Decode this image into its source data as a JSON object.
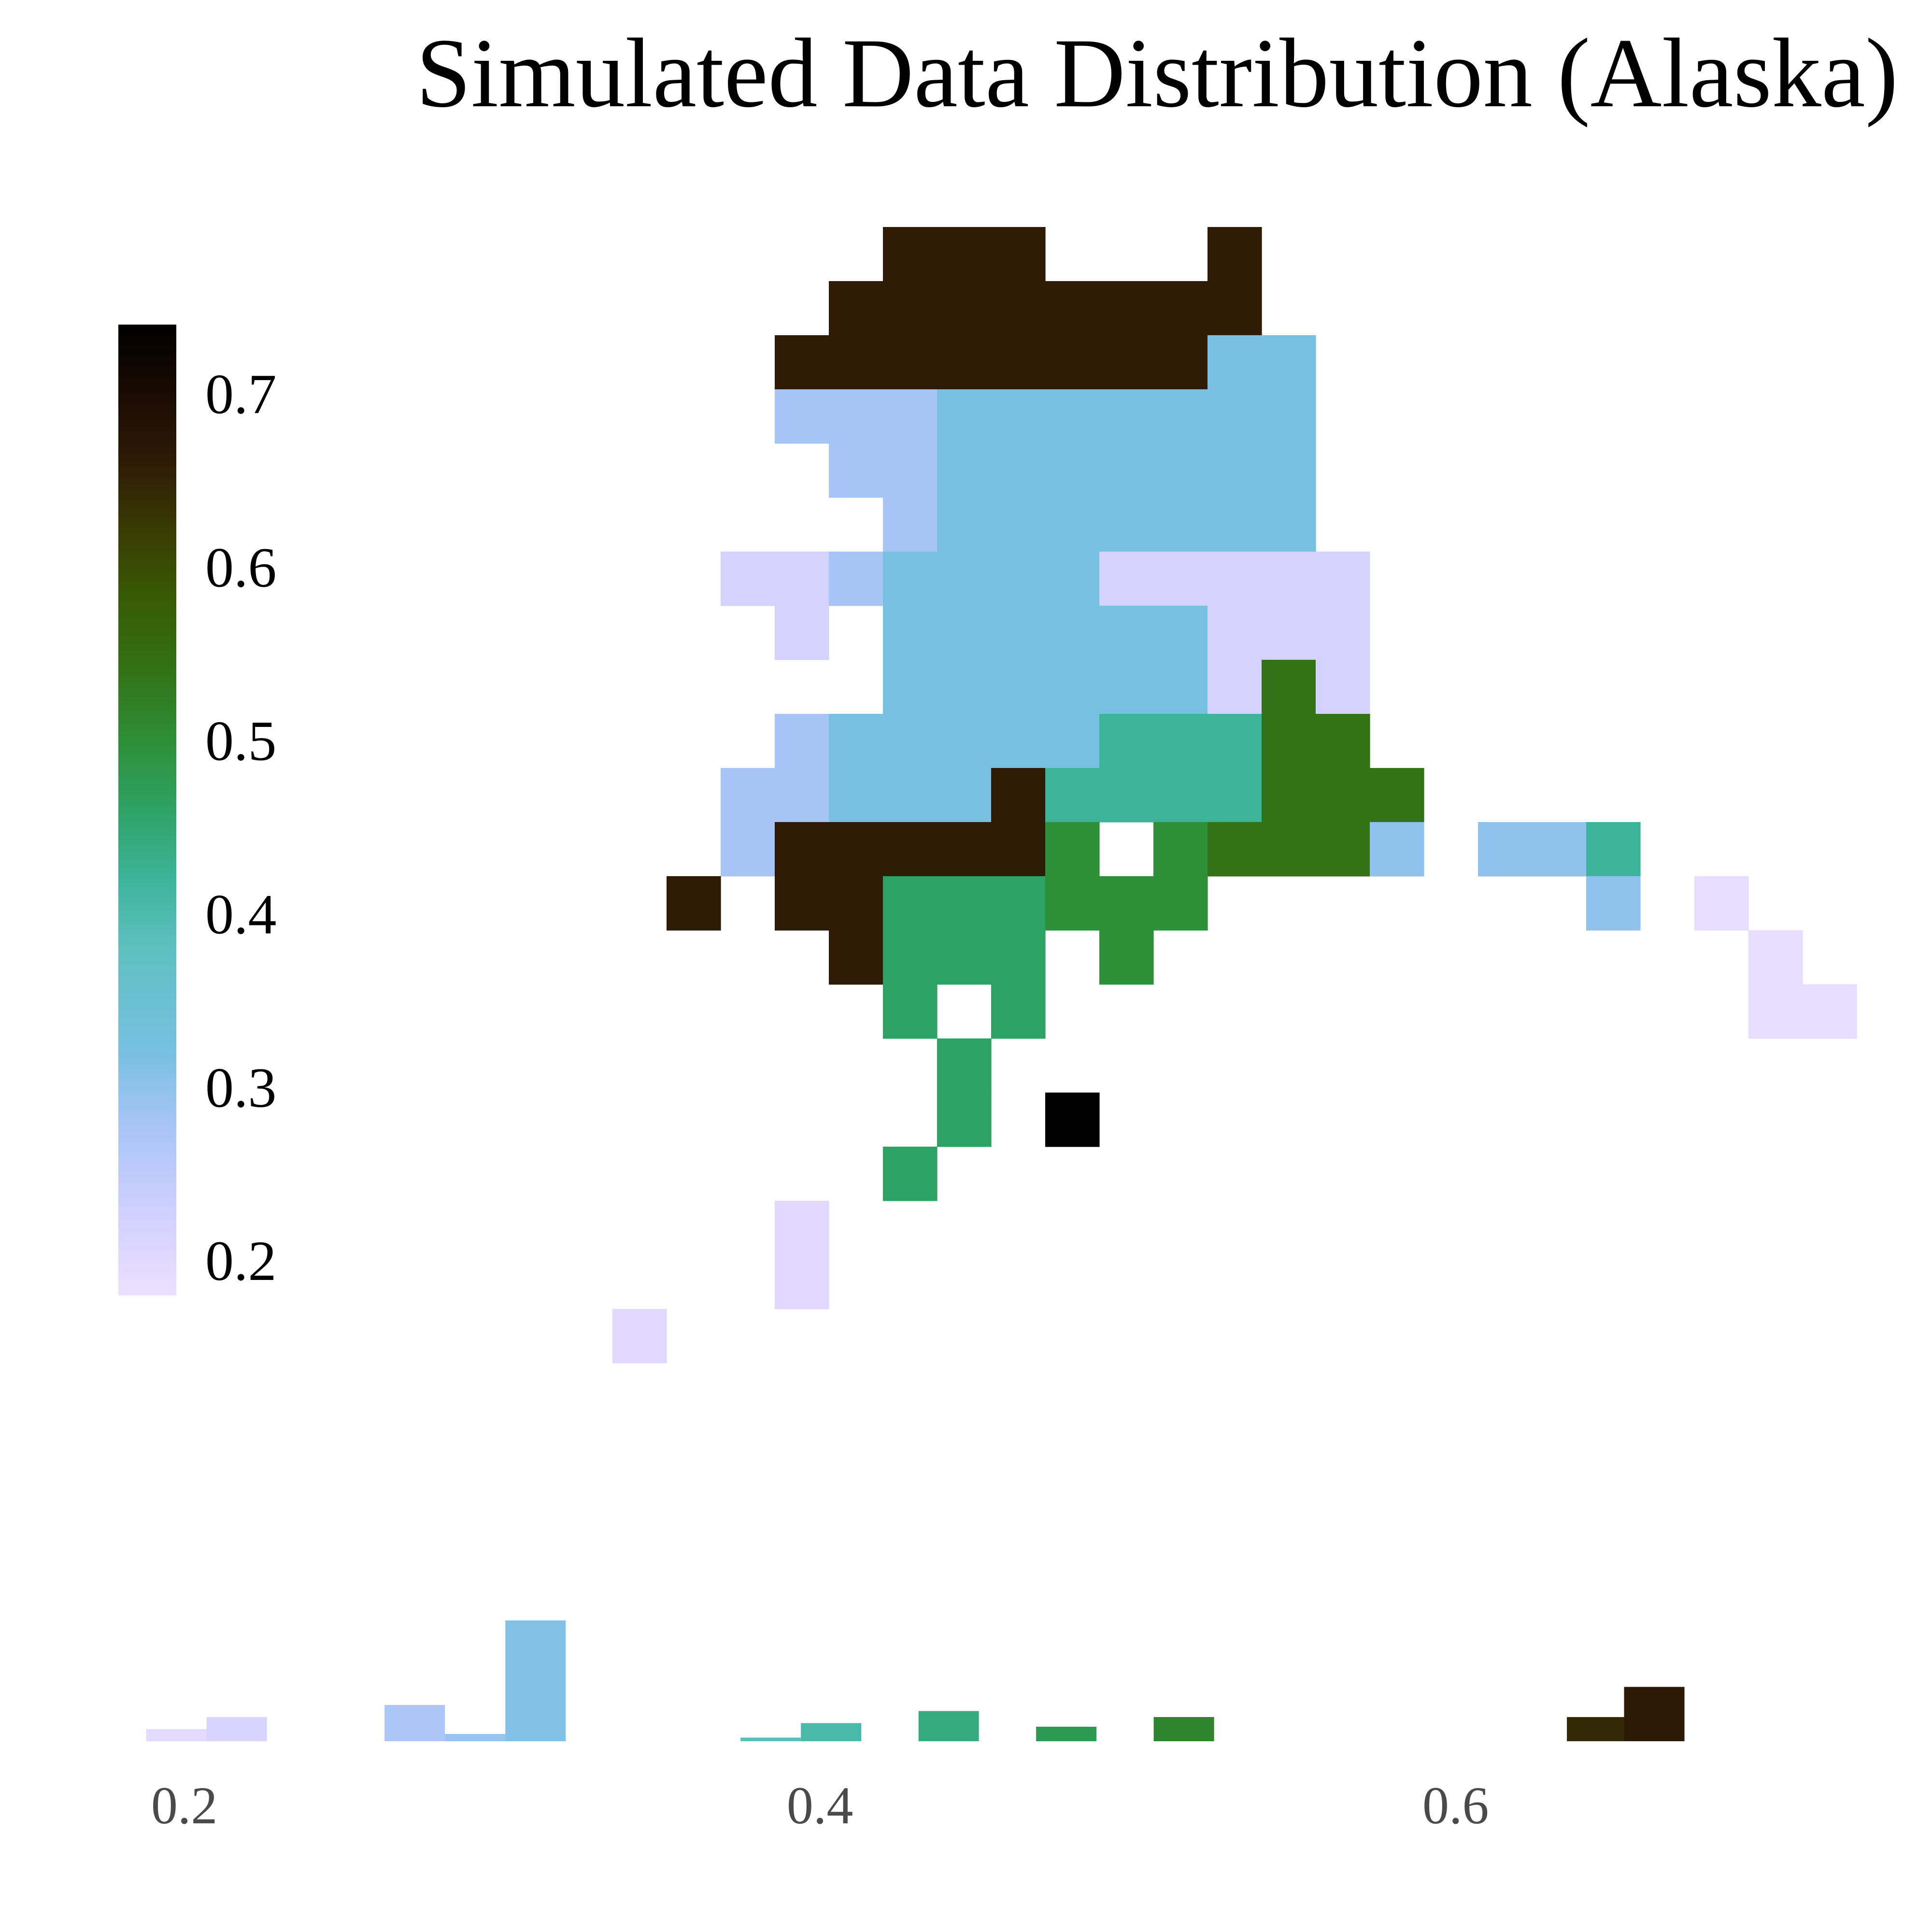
{
  "title": "Simulated Data Distribution (Alaska)",
  "chart_data": {
    "type": "heatmap",
    "title": "Simulated Data Distribution (Alaska)",
    "colormap": {
      "name": "cubehelix-reversed",
      "range": [
        0.18,
        0.74
      ],
      "stops": [
        {
          "v": 0.18,
          "color": "#ebe0ff"
        },
        {
          "v": 0.22,
          "color": "#d6d2ff"
        },
        {
          "v": 0.28,
          "color": "#a6c4f6"
        },
        {
          "v": 0.32,
          "color": "#78c0e2"
        },
        {
          "v": 0.38,
          "color": "#5ec0c0"
        },
        {
          "v": 0.42,
          "color": "#3db49a"
        },
        {
          "v": 0.46,
          "color": "#2ea265"
        },
        {
          "v": 0.5,
          "color": "#2d8f37"
        },
        {
          "v": 0.54,
          "color": "#337216"
        },
        {
          "v": 0.58,
          "color": "#375c05"
        },
        {
          "v": 0.62,
          "color": "#3a3d03"
        },
        {
          "v": 0.66,
          "color": "#2e1b06"
        },
        {
          "v": 0.7,
          "color": "#1a0b03"
        },
        {
          "v": 0.74,
          "color": "#000000"
        }
      ],
      "ticks": [
        0.7,
        0.6,
        0.5,
        0.4,
        0.3,
        0.2
      ],
      "tick_labels": [
        "0.7",
        "0.6",
        "0.5",
        "0.4",
        "0.3",
        "0.2"
      ]
    },
    "grid": {
      "cols": 22,
      "rows": 21,
      "cells": [
        {
          "c": 4,
          "r": 0,
          "v": 0.66
        },
        {
          "c": 5,
          "r": 0,
          "v": 0.66
        },
        {
          "c": 6,
          "r": 0,
          "v": 0.66
        },
        {
          "c": 10,
          "r": 0,
          "v": 0.66
        },
        {
          "c": 3,
          "r": 1,
          "v": 0.66
        },
        {
          "c": 4,
          "r": 1,
          "v": 0.66
        },
        {
          "c": 5,
          "r": 1,
          "v": 0.66
        },
        {
          "c": 6,
          "r": 1,
          "v": 0.66
        },
        {
          "c": 7,
          "r": 1,
          "v": 0.66
        },
        {
          "c": 8,
          "r": 1,
          "v": 0.66
        },
        {
          "c": 9,
          "r": 1,
          "v": 0.66
        },
        {
          "c": 10,
          "r": 1,
          "v": 0.66
        },
        {
          "c": 2,
          "r": 2,
          "v": 0.66
        },
        {
          "c": 3,
          "r": 2,
          "v": 0.66
        },
        {
          "c": 4,
          "r": 2,
          "v": 0.66
        },
        {
          "c": 5,
          "r": 2,
          "v": 0.66
        },
        {
          "c": 6,
          "r": 2,
          "v": 0.66
        },
        {
          "c": 7,
          "r": 2,
          "v": 0.66
        },
        {
          "c": 8,
          "r": 2,
          "v": 0.66
        },
        {
          "c": 9,
          "r": 2,
          "v": 0.66
        },
        {
          "c": 10,
          "r": 2,
          "v": 0.32
        },
        {
          "c": 11,
          "r": 2,
          "v": 0.32
        },
        {
          "c": 2,
          "r": 3,
          "v": 0.28
        },
        {
          "c": 3,
          "r": 3,
          "v": 0.28
        },
        {
          "c": 4,
          "r": 3,
          "v": 0.28
        },
        {
          "c": 5,
          "r": 3,
          "v": 0.32
        },
        {
          "c": 6,
          "r": 3,
          "v": 0.32
        },
        {
          "c": 7,
          "r": 3,
          "v": 0.32
        },
        {
          "c": 8,
          "r": 3,
          "v": 0.32
        },
        {
          "c": 9,
          "r": 3,
          "v": 0.32
        },
        {
          "c": 10,
          "r": 3,
          "v": 0.32
        },
        {
          "c": 11,
          "r": 3,
          "v": 0.32
        },
        {
          "c": 3,
          "r": 4,
          "v": 0.28
        },
        {
          "c": 4,
          "r": 4,
          "v": 0.28
        },
        {
          "c": 5,
          "r": 4,
          "v": 0.32
        },
        {
          "c": 6,
          "r": 4,
          "v": 0.32
        },
        {
          "c": 7,
          "r": 4,
          "v": 0.32
        },
        {
          "c": 8,
          "r": 4,
          "v": 0.32
        },
        {
          "c": 9,
          "r": 4,
          "v": 0.32
        },
        {
          "c": 10,
          "r": 4,
          "v": 0.32
        },
        {
          "c": 11,
          "r": 4,
          "v": 0.32
        },
        {
          "c": 4,
          "r": 5,
          "v": 0.28
        },
        {
          "c": 5,
          "r": 5,
          "v": 0.32
        },
        {
          "c": 6,
          "r": 5,
          "v": 0.32
        },
        {
          "c": 7,
          "r": 5,
          "v": 0.32
        },
        {
          "c": 8,
          "r": 5,
          "v": 0.32
        },
        {
          "c": 9,
          "r": 5,
          "v": 0.32
        },
        {
          "c": 10,
          "r": 5,
          "v": 0.32
        },
        {
          "c": 11,
          "r": 5,
          "v": 0.32
        },
        {
          "c": 1,
          "r": 6,
          "v": 0.22
        },
        {
          "c": 2,
          "r": 6,
          "v": 0.22
        },
        {
          "c": 3,
          "r": 6,
          "v": 0.28
        },
        {
          "c": 4,
          "r": 6,
          "v": 0.32
        },
        {
          "c": 5,
          "r": 6,
          "v": 0.32
        },
        {
          "c": 6,
          "r": 6,
          "v": 0.32
        },
        {
          "c": 7,
          "r": 6,
          "v": 0.32
        },
        {
          "c": 8,
          "r": 6,
          "v": 0.22
        },
        {
          "c": 9,
          "r": 6,
          "v": 0.22
        },
        {
          "c": 10,
          "r": 6,
          "v": 0.22
        },
        {
          "c": 11,
          "r": 6,
          "v": 0.22
        },
        {
          "c": 12,
          "r": 6,
          "v": 0.22
        },
        {
          "c": 2,
          "r": 7,
          "v": 0.22
        },
        {
          "c": 4,
          "r": 7,
          "v": 0.32
        },
        {
          "c": 5,
          "r": 7,
          "v": 0.32
        },
        {
          "c": 6,
          "r": 7,
          "v": 0.32
        },
        {
          "c": 7,
          "r": 7,
          "v": 0.32
        },
        {
          "c": 8,
          "r": 7,
          "v": 0.32
        },
        {
          "c": 9,
          "r": 7,
          "v": 0.32
        },
        {
          "c": 10,
          "r": 7,
          "v": 0.22
        },
        {
          "c": 11,
          "r": 7,
          "v": 0.22
        },
        {
          "c": 12,
          "r": 7,
          "v": 0.22
        },
        {
          "c": 4,
          "r": 8,
          "v": 0.32
        },
        {
          "c": 5,
          "r": 8,
          "v": 0.32
        },
        {
          "c": 6,
          "r": 8,
          "v": 0.32
        },
        {
          "c": 7,
          "r": 8,
          "v": 0.32
        },
        {
          "c": 8,
          "r": 8,
          "v": 0.32
        },
        {
          "c": 9,
          "r": 8,
          "v": 0.32
        },
        {
          "c": 10,
          "r": 8,
          "v": 0.22
        },
        {
          "c": 11,
          "r": 8,
          "v": 0.54
        },
        {
          "c": 12,
          "r": 8,
          "v": 0.22
        },
        {
          "c": 2,
          "r": 9,
          "v": 0.28
        },
        {
          "c": 3,
          "r": 9,
          "v": 0.32
        },
        {
          "c": 4,
          "r": 9,
          "v": 0.32
        },
        {
          "c": 5,
          "r": 9,
          "v": 0.32
        },
        {
          "c": 6,
          "r": 9,
          "v": 0.32
        },
        {
          "c": 7,
          "r": 9,
          "v": 0.32
        },
        {
          "c": 8,
          "r": 9,
          "v": 0.42
        },
        {
          "c": 9,
          "r": 9,
          "v": 0.42
        },
        {
          "c": 10,
          "r": 9,
          "v": 0.42
        },
        {
          "c": 11,
          "r": 9,
          "v": 0.54
        },
        {
          "c": 12,
          "r": 9,
          "v": 0.54
        },
        {
          "c": 1,
          "r": 10,
          "v": 0.28
        },
        {
          "c": 2,
          "r": 10,
          "v": 0.28
        },
        {
          "c": 3,
          "r": 10,
          "v": 0.32
        },
        {
          "c": 4,
          "r": 10,
          "v": 0.32
        },
        {
          "c": 5,
          "r": 10,
          "v": 0.32
        },
        {
          "c": 6,
          "r": 10,
          "v": 0.66
        },
        {
          "c": 7,
          "r": 10,
          "v": 0.42
        },
        {
          "c": 8,
          "r": 10,
          "v": 0.42
        },
        {
          "c": 9,
          "r": 10,
          "v": 0.42
        },
        {
          "c": 10,
          "r": 10,
          "v": 0.42
        },
        {
          "c": 11,
          "r": 10,
          "v": 0.54
        },
        {
          "c": 12,
          "r": 10,
          "v": 0.54
        },
        {
          "c": 13,
          "r": 10,
          "v": 0.54
        },
        {
          "c": 1,
          "r": 11,
          "v": 0.28
        },
        {
          "c": 2,
          "r": 11,
          "v": 0.66
        },
        {
          "c": 3,
          "r": 11,
          "v": 0.66
        },
        {
          "c": 4,
          "r": 11,
          "v": 0.66
        },
        {
          "c": 5,
          "r": 11,
          "v": 0.66
        },
        {
          "c": 6,
          "r": 11,
          "v": 0.66
        },
        {
          "c": 7,
          "r": 11,
          "v": 0.5
        },
        {
          "c": 9,
          "r": 11,
          "v": 0.5
        },
        {
          "c": 10,
          "r": 11,
          "v": 0.54
        },
        {
          "c": 11,
          "r": 11,
          "v": 0.54
        },
        {
          "c": 12,
          "r": 11,
          "v": 0.54
        },
        {
          "c": 13,
          "r": 11,
          "v": 0.3
        },
        {
          "c": 15,
          "r": 11,
          "v": 0.3
        },
        {
          "c": 16,
          "r": 11,
          "v": 0.3
        },
        {
          "c": 17,
          "r": 11,
          "v": 0.42
        },
        {
          "c": 0,
          "r": 12,
          "v": 0.66
        },
        {
          "c": 2,
          "r": 12,
          "v": 0.66
        },
        {
          "c": 3,
          "r": 12,
          "v": 0.66
        },
        {
          "c": 4,
          "r": 12,
          "v": 0.46
        },
        {
          "c": 5,
          "r": 12,
          "v": 0.46
        },
        {
          "c": 6,
          "r": 12,
          "v": 0.46
        },
        {
          "c": 7,
          "r": 12,
          "v": 0.5
        },
        {
          "c": 8,
          "r": 12,
          "v": 0.5
        },
        {
          "c": 9,
          "r": 12,
          "v": 0.5
        },
        {
          "c": 17,
          "r": 12,
          "v": 0.3
        },
        {
          "c": 19,
          "r": 12,
          "v": 0.19
        },
        {
          "c": 3,
          "r": 13,
          "v": 0.66
        },
        {
          "c": 4,
          "r": 13,
          "v": 0.46
        },
        {
          "c": 5,
          "r": 13,
          "v": 0.46
        },
        {
          "c": 6,
          "r": 13,
          "v": 0.46
        },
        {
          "c": 8,
          "r": 13,
          "v": 0.5
        },
        {
          "c": 20,
          "r": 13,
          "v": 0.19
        },
        {
          "c": 4,
          "r": 14,
          "v": 0.46
        },
        {
          "c": 6,
          "r": 14,
          "v": 0.46
        },
        {
          "c": 20,
          "r": 14,
          "v": 0.19
        },
        {
          "c": 21,
          "r": 14,
          "v": 0.19
        },
        {
          "c": 5,
          "r": 15,
          "v": 0.46
        },
        {
          "c": 5,
          "r": 16,
          "v": 0.46
        },
        {
          "c": 7,
          "r": 16,
          "v": 0.74
        },
        {
          "c": 4,
          "r": 17,
          "v": 0.46
        },
        {
          "c": 2,
          "r": 18,
          "v": 0.2
        },
        {
          "c": 2,
          "r": 19,
          "v": 0.2
        },
        {
          "c": -1,
          "r": 20,
          "v": 0.2
        }
      ]
    },
    "histogram": {
      "xlim": [
        0.18,
        0.74
      ],
      "tick_values": [
        0.2,
        0.4,
        0.6
      ],
      "tick_labels": [
        "0.2",
        "0.4",
        "0.6"
      ],
      "bins": [
        {
          "x0": 0.188,
          "x1": 0.207,
          "count": 1
        },
        {
          "x0": 0.207,
          "x1": 0.226,
          "count": 2
        },
        {
          "x0": 0.263,
          "x1": 0.282,
          "count": 3
        },
        {
          "x0": 0.282,
          "x1": 0.301,
          "count": 0.6
        },
        {
          "x0": 0.301,
          "x1": 0.32,
          "count": 10
        },
        {
          "x0": 0.375,
          "x1": 0.394,
          "count": 0.3
        },
        {
          "x0": 0.394,
          "x1": 0.413,
          "count": 1.5
        },
        {
          "x0": 0.431,
          "x1": 0.45,
          "count": 2.5
        },
        {
          "x0": 0.468,
          "x1": 0.487,
          "count": 1.2
        },
        {
          "x0": 0.505,
          "x1": 0.524,
          "count": 2
        },
        {
          "x0": 0.635,
          "x1": 0.653,
          "count": 2
        },
        {
          "x0": 0.653,
          "x1": 0.672,
          "count": 4.5
        }
      ]
    }
  }
}
